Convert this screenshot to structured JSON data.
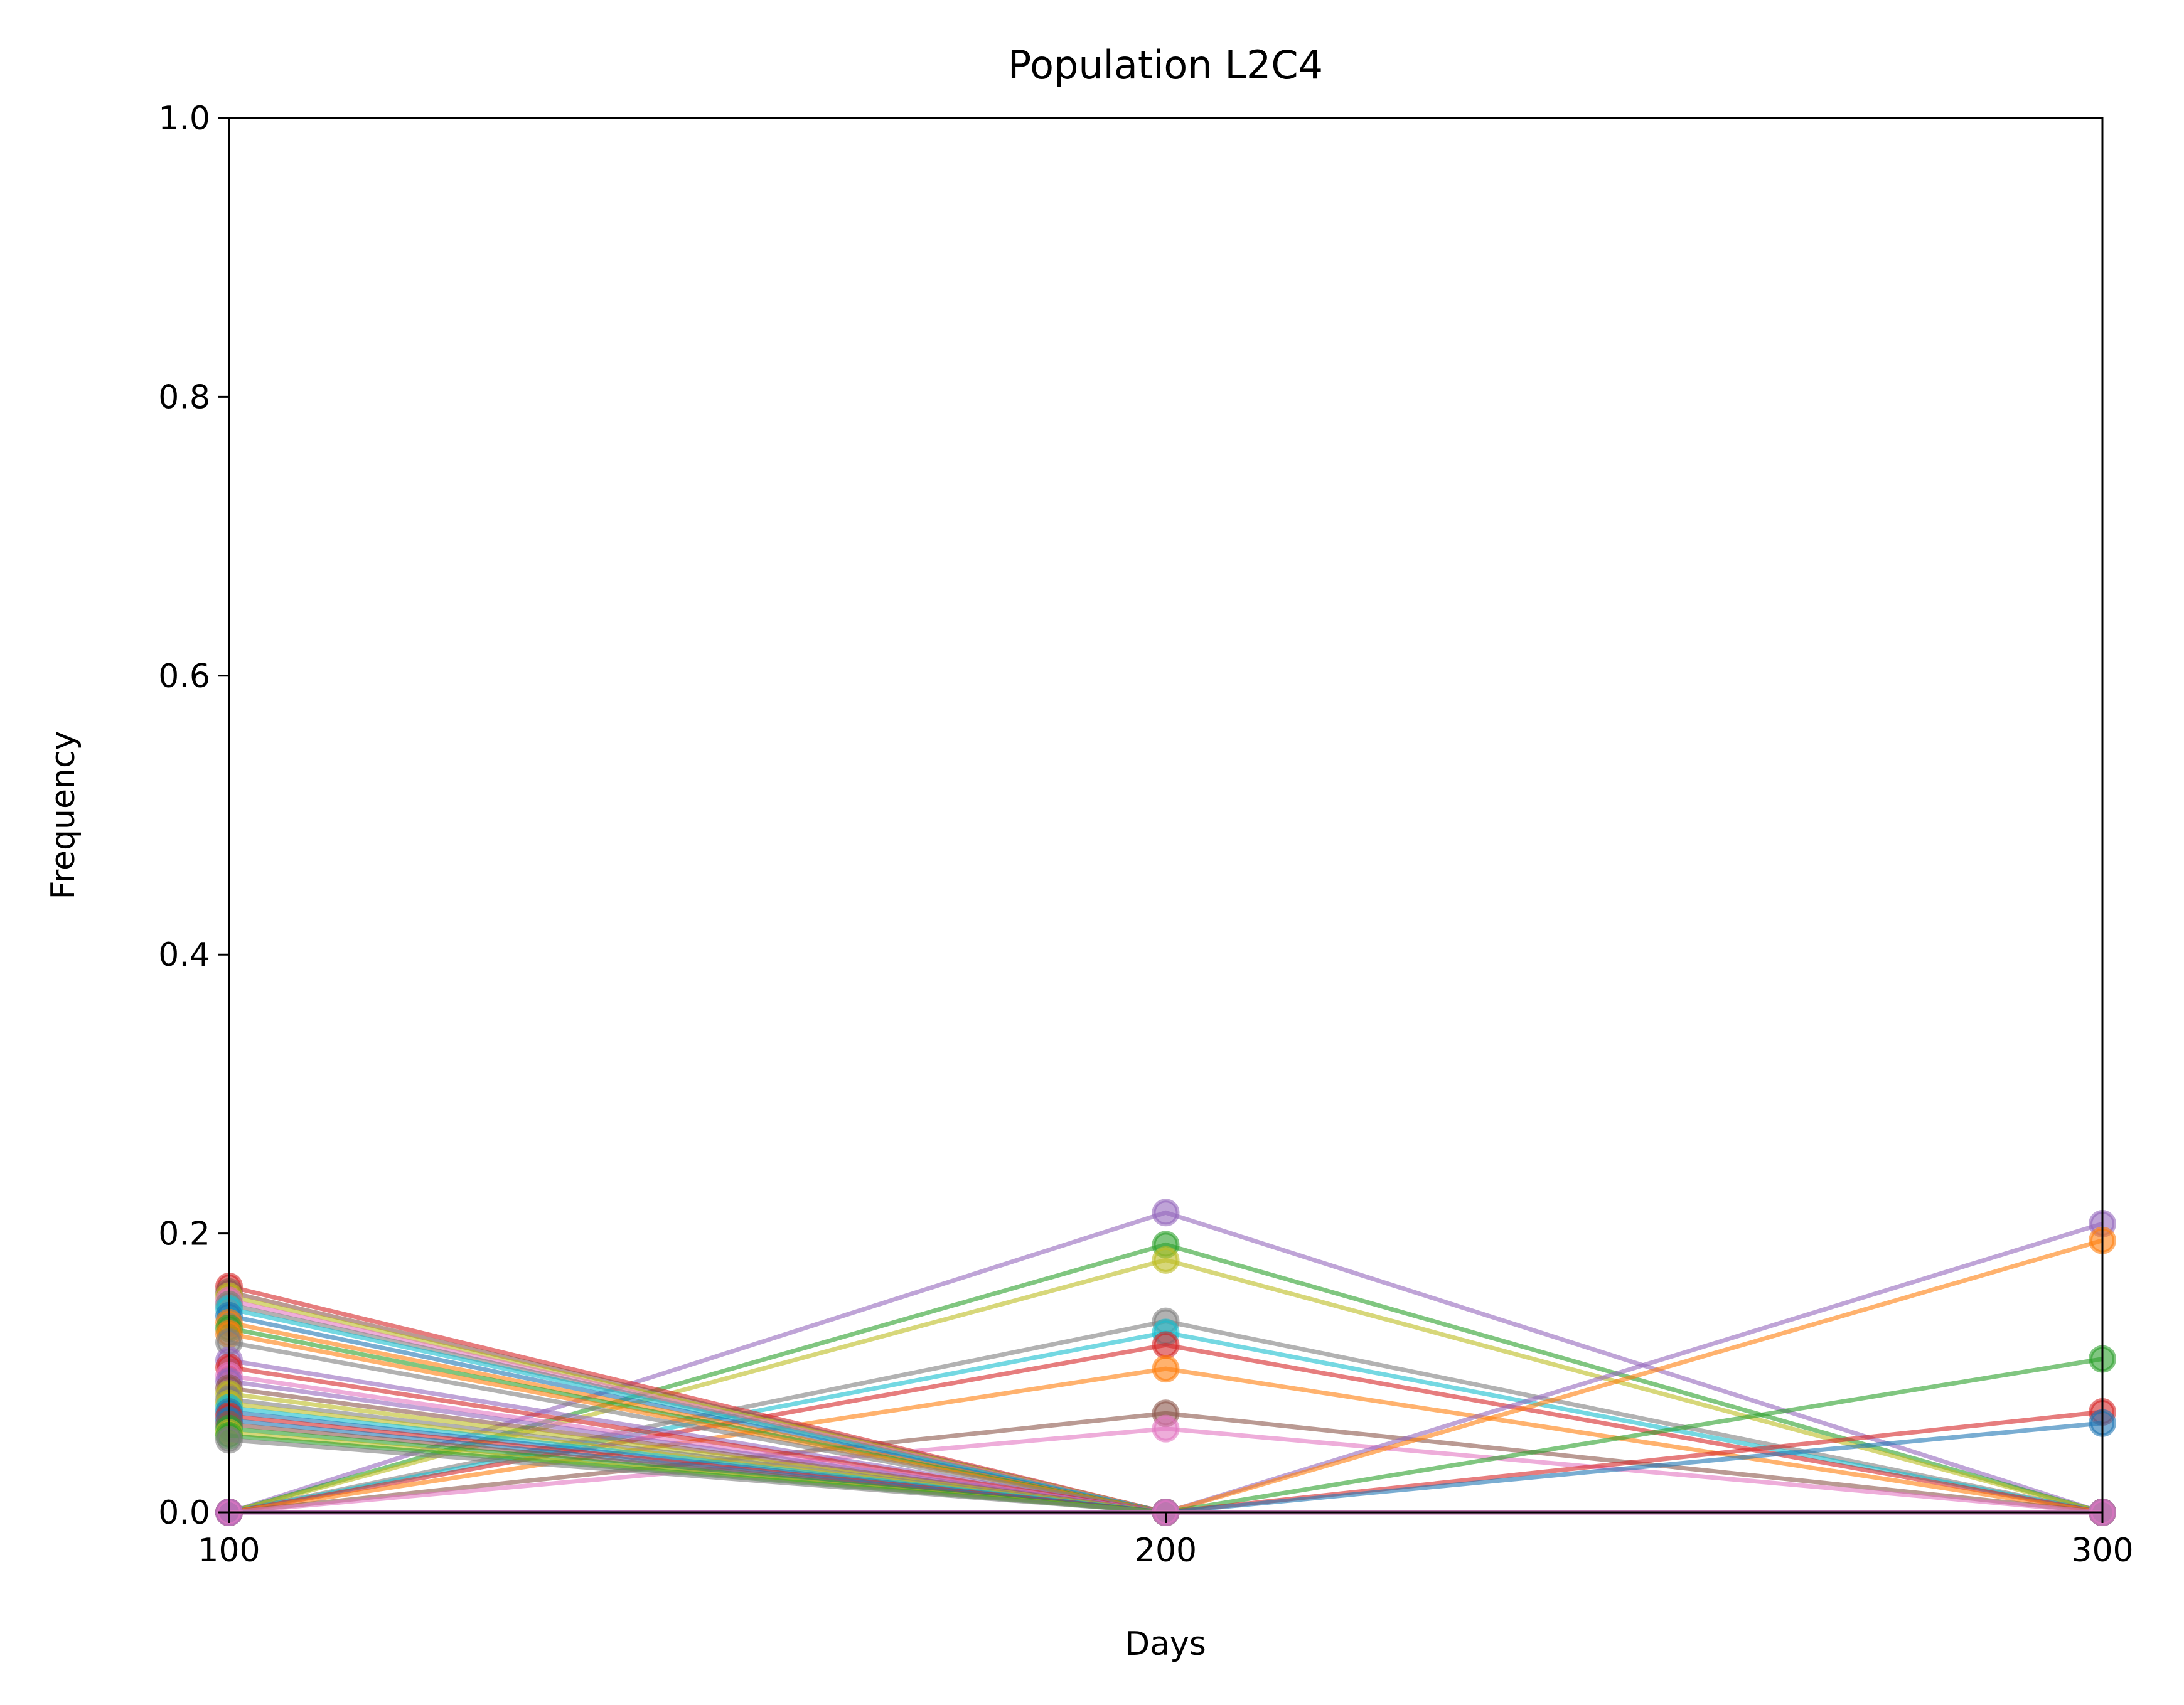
{
  "chart_data": {
    "type": "line",
    "title": "Population L2C4",
    "xlabel": "Days",
    "ylabel": "Frequency",
    "x": [
      100,
      200,
      300
    ],
    "xlim": [
      100,
      300
    ],
    "ylim": [
      0.0,
      1.0
    ],
    "xticks": [
      "100",
      "200",
      "300"
    ],
    "yticks": [
      "0.0",
      "0.2",
      "0.4",
      "0.6",
      "0.8",
      "1.0"
    ],
    "grid": false,
    "marker": "circle",
    "series": [
      {
        "color": "#9467bd",
        "values": [
          0.0,
          0.215,
          0.0
        ]
      },
      {
        "color": "#2ca02c",
        "values": [
          0.0,
          0.192,
          0.0
        ]
      },
      {
        "color": "#bcbd22",
        "values": [
          0.0,
          0.181,
          0.0
        ]
      },
      {
        "color": "#7f7f7f",
        "values": [
          0.0,
          0.137,
          0.0
        ]
      },
      {
        "color": "#17becf",
        "values": [
          0.0,
          0.129,
          0.0
        ]
      },
      {
        "color": "#d62728",
        "values": [
          0.0,
          0.12,
          0.0
        ]
      },
      {
        "color": "#ff7f0e",
        "values": [
          0.0,
          0.103,
          0.0
        ]
      },
      {
        "color": "#8c564b",
        "values": [
          0.0,
          0.071,
          0.0
        ]
      },
      {
        "color": "#e377c2",
        "values": [
          0.0,
          0.06,
          0.0
        ]
      },
      {
        "color": "#9467bd",
        "values": [
          0.0,
          0.0,
          0.207
        ]
      },
      {
        "color": "#ff7f0e",
        "values": [
          0.0,
          0.0,
          0.195
        ]
      },
      {
        "color": "#2ca02c",
        "values": [
          0.0,
          0.0,
          0.11
        ]
      },
      {
        "color": "#d62728",
        "values": [
          0.0,
          0.0,
          0.072
        ]
      },
      {
        "color": "#1f77b4",
        "values": [
          0.0,
          0.0,
          0.064
        ]
      },
      {
        "color": "#d62728",
        "values": [
          0.162,
          0.0,
          0.0
        ]
      },
      {
        "color": "#8c564b",
        "values": [
          0.158,
          0.0,
          0.0
        ]
      },
      {
        "color": "#bcbd22",
        "values": [
          0.155,
          0.0,
          0.0
        ]
      },
      {
        "color": "#e377c2",
        "values": [
          0.152,
          0.0,
          0.0
        ]
      },
      {
        "color": "#7f7f7f",
        "values": [
          0.149,
          0.0,
          0.0
        ]
      },
      {
        "color": "#17becf",
        "values": [
          0.146,
          0.0,
          0.0
        ]
      },
      {
        "color": "#1f77b4",
        "values": [
          0.141,
          0.0,
          0.0
        ]
      },
      {
        "color": "#ff7f0e",
        "values": [
          0.136,
          0.0,
          0.0
        ]
      },
      {
        "color": "#2ca02c",
        "values": [
          0.132,
          0.0,
          0.0
        ]
      },
      {
        "color": "#ff7f0e",
        "values": [
          0.128,
          0.0,
          0.0
        ]
      },
      {
        "color": "#7f7f7f",
        "values": [
          0.122,
          0.0,
          0.0
        ]
      },
      {
        "color": "#9467bd",
        "values": [
          0.109,
          0.0,
          0.0
        ]
      },
      {
        "color": "#d62728",
        "values": [
          0.104,
          0.0,
          0.0
        ]
      },
      {
        "color": "#e377c2",
        "values": [
          0.098,
          0.0,
          0.0
        ]
      },
      {
        "color": "#9467bd",
        "values": [
          0.094,
          0.0,
          0.0
        ]
      },
      {
        "color": "#8c564b",
        "values": [
          0.089,
          0.0,
          0.0
        ]
      },
      {
        "color": "#bcbd22",
        "values": [
          0.085,
          0.0,
          0.0
        ]
      },
      {
        "color": "#7f7f7f",
        "values": [
          0.081,
          0.0,
          0.0
        ]
      },
      {
        "color": "#bcbd22",
        "values": [
          0.078,
          0.0,
          0.0
        ]
      },
      {
        "color": "#17becf",
        "values": [
          0.075,
          0.0,
          0.0
        ]
      },
      {
        "color": "#1f77b4",
        "values": [
          0.072,
          0.0,
          0.0
        ]
      },
      {
        "color": "#d62728",
        "values": [
          0.069,
          0.0,
          0.0
        ]
      },
      {
        "color": "#1f77b4",
        "values": [
          0.066,
          0.0,
          0.0
        ]
      },
      {
        "color": "#8c564b",
        "values": [
          0.063,
          0.0,
          0.0
        ]
      },
      {
        "color": "#2ca02c",
        "values": [
          0.06,
          0.0,
          0.0
        ]
      },
      {
        "color": "#bcbd22",
        "values": [
          0.057,
          0.0,
          0.0
        ]
      },
      {
        "color": "#2ca02c",
        "values": [
          0.055,
          0.0,
          0.0
        ]
      },
      {
        "color": "#7f7f7f",
        "values": [
          0.052,
          0.0,
          0.0
        ]
      },
      {
        "color": "#9467bd",
        "values": [
          0.0,
          0.0,
          0.0
        ]
      },
      {
        "color": "#e377c2",
        "values": [
          0.0,
          0.0,
          0.0
        ]
      }
    ]
  }
}
